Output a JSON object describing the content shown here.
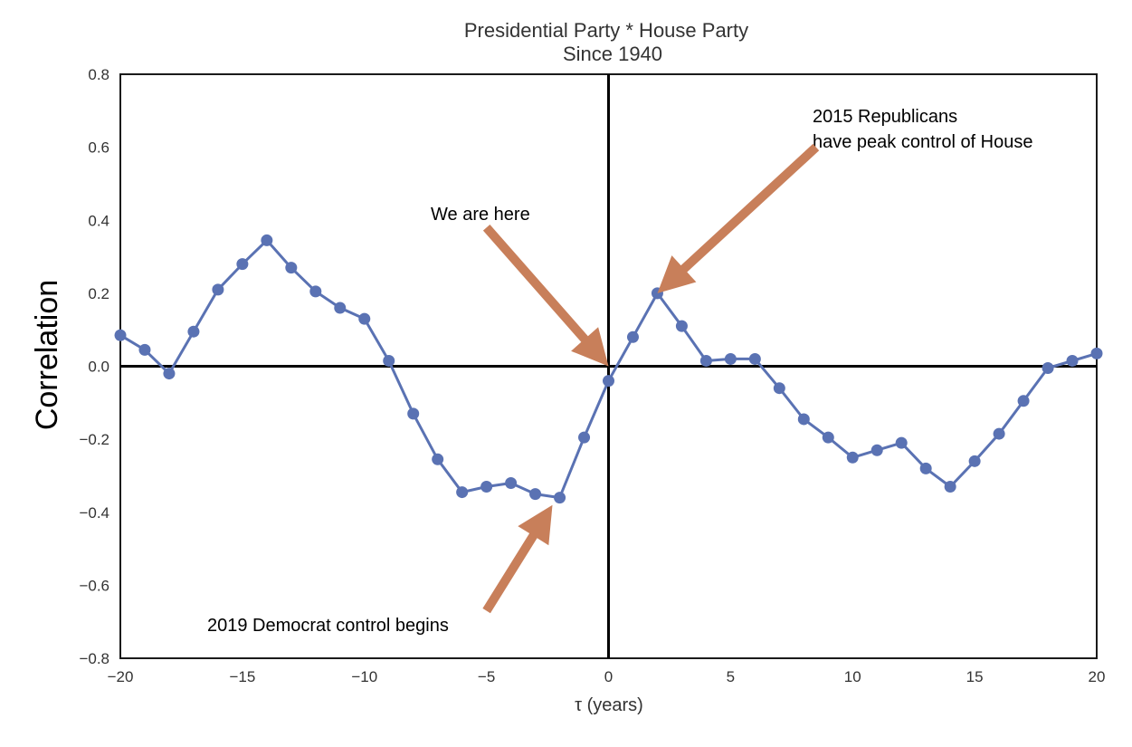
{
  "chart_data": {
    "type": "line",
    "title": "Presidential Party * House Party",
    "subtitle": "Since 1940",
    "xlabel": "τ (years)",
    "ylabel": "Correlation",
    "xlim": [
      -20,
      20
    ],
    "ylim": [
      -0.8,
      0.8
    ],
    "xticks": [
      -20,
      -15,
      -10,
      -5,
      0,
      5,
      10,
      15,
      20
    ],
    "xtick_labels": [
      "−20",
      "−15",
      "−10",
      "−5",
      "0",
      "5",
      "10",
      "15",
      "20"
    ],
    "yticks": [
      0.8,
      0.6,
      0.4,
      0.2,
      0.0,
      -0.2,
      -0.4,
      -0.6,
      -0.8
    ],
    "ytick_labels": [
      "0.8",
      "0.6",
      "0.4",
      "0.2",
      "0.0",
      "−0.2",
      "−0.4",
      "−0.6",
      "−0.8"
    ],
    "grid": false,
    "series": [
      {
        "color": "#5a72b3",
        "x": [
          -20,
          -19,
          -18,
          -17,
          -16,
          -15,
          -14,
          -13,
          -12,
          -11,
          -10,
          -9,
          -8,
          -7,
          -6,
          -5,
          -4,
          -3,
          -2,
          -1,
          0,
          1,
          2,
          3,
          4,
          5,
          6,
          7,
          8,
          9,
          10,
          11,
          12,
          13,
          14,
          15,
          16,
          17,
          18,
          19,
          20
        ],
        "y": [
          0.085,
          0.045,
          -0.02,
          0.095,
          0.21,
          0.28,
          0.345,
          0.27,
          0.205,
          0.16,
          0.13,
          0.015,
          -0.13,
          -0.255,
          -0.345,
          -0.33,
          -0.32,
          -0.35,
          -0.36,
          -0.195,
          -0.04,
          0.08,
          0.2,
          0.11,
          0.015,
          0.02,
          0.02,
          -0.06,
          -0.145,
          -0.195,
          -0.25,
          -0.23,
          -0.21,
          -0.28,
          -0.33,
          -0.26,
          -0.185,
          -0.095,
          -0.005,
          0.015,
          0.035
        ]
      }
    ],
    "reference_lines": {
      "x": 0,
      "y": 0,
      "color": "#000000"
    },
    "annotations": [
      {
        "text": "We are here",
        "arrow_from": [
          -5.0,
          0.38
        ],
        "arrow_to": [
          0.0,
          0.0
        ]
      },
      {
        "text": "2015 Republicans",
        "text2": "have peak control of House",
        "arrow_from": [
          8.5,
          0.6
        ],
        "arrow_to": [
          2.0,
          0.2
        ]
      },
      {
        "text": "2019 Democrat control begins",
        "arrow_from": [
          -5.0,
          -0.67
        ],
        "arrow_to": [
          -2.3,
          -0.38
        ]
      }
    ],
    "arrow_color": "#c87f5a"
  }
}
